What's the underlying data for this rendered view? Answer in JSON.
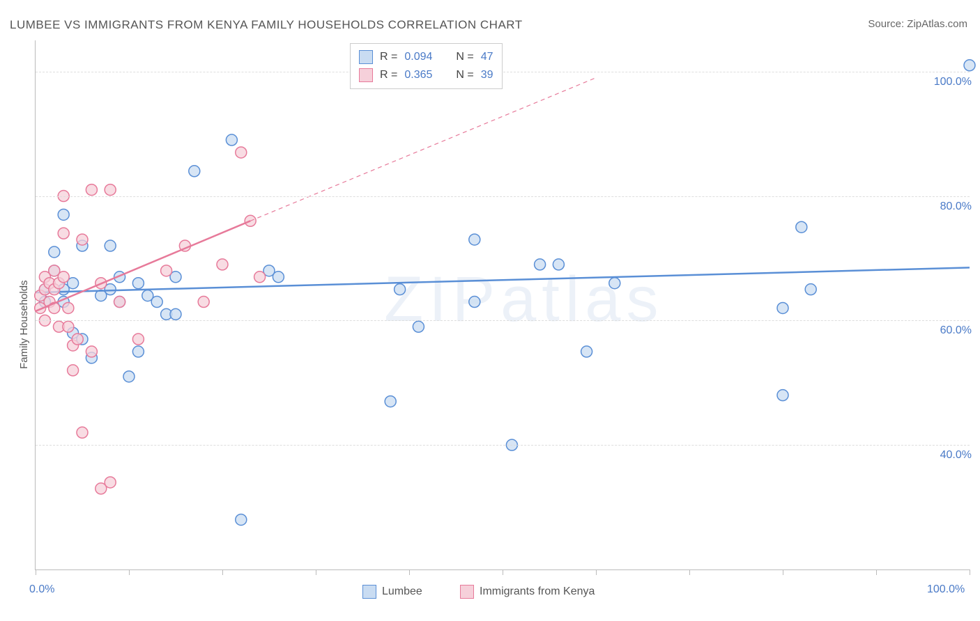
{
  "title": "LUMBEE VS IMMIGRANTS FROM KENYA FAMILY HOUSEHOLDS CORRELATION CHART",
  "source_label": "Source: ",
  "source_name": "ZipAtlas.com",
  "watermark": "ZIPatlas",
  "y_axis_label": "Family Households",
  "chart": {
    "type": "scatter",
    "background_color": "#ffffff",
    "grid_color": "#dddddd",
    "axis_color": "#bbbbbb",
    "tick_label_color": "#4a7ac7",
    "xlim": [
      0,
      100
    ],
    "ylim": [
      20,
      105
    ],
    "y_gridlines": [
      40,
      60,
      80,
      100
    ],
    "y_tick_labels": [
      "40.0%",
      "60.0%",
      "80.0%",
      "100.0%"
    ],
    "x_tick_positions": [
      0,
      10,
      20,
      30,
      40,
      50,
      60,
      70,
      80,
      90,
      100
    ],
    "x_tick_labels_shown": {
      "0": "0.0%",
      "100": "100.0%"
    },
    "marker_radius": 8,
    "marker_stroke_width": 1.5,
    "trend_line_width": 2.5,
    "series": [
      {
        "name": "Lumbee",
        "fill_color": "#c9dcf2",
        "stroke_color": "#5a8fd6",
        "fill_opacity": 0.75,
        "r_value": "0.094",
        "n_value": "47",
        "trend": {
          "x0": 0,
          "y0": 64.5,
          "x1": 100,
          "y1": 68.5,
          "extrapolated": false
        },
        "points": [
          [
            1,
            65
          ],
          [
            1,
            63
          ],
          [
            2,
            68
          ],
          [
            2,
            71
          ],
          [
            3,
            77
          ],
          [
            3,
            63
          ],
          [
            3,
            65
          ],
          [
            4,
            66
          ],
          [
            4,
            58
          ],
          [
            5,
            57
          ],
          [
            5,
            72
          ],
          [
            6,
            54
          ],
          [
            7,
            64
          ],
          [
            8,
            72
          ],
          [
            8,
            65
          ],
          [
            9,
            63
          ],
          [
            9,
            67
          ],
          [
            10,
            51
          ],
          [
            11,
            66
          ],
          [
            11,
            55
          ],
          [
            12,
            64
          ],
          [
            13,
            63
          ],
          [
            14,
            61
          ],
          [
            15,
            67
          ],
          [
            15,
            61
          ],
          [
            17,
            84
          ],
          [
            21,
            89
          ],
          [
            22,
            28
          ],
          [
            25,
            68
          ],
          [
            26,
            67
          ],
          [
            38,
            47
          ],
          [
            39,
            65
          ],
          [
            41,
            59
          ],
          [
            47,
            63
          ],
          [
            47,
            73
          ],
          [
            51,
            40
          ],
          [
            54,
            69
          ],
          [
            56,
            69
          ],
          [
            59,
            55
          ],
          [
            62,
            66
          ],
          [
            80,
            62
          ],
          [
            80,
            48
          ],
          [
            82,
            75
          ],
          [
            83,
            65
          ],
          [
            100,
            101
          ]
        ]
      },
      {
        "name": "Immigrants from Kenya",
        "fill_color": "#f6d0da",
        "stroke_color": "#e77a9a",
        "fill_opacity": 0.75,
        "r_value": "0.365",
        "n_value": "39",
        "trend": {
          "x0": 0,
          "y0": 61.5,
          "x1": 23,
          "y1": 76,
          "extrapolated": true,
          "ex_x1": 60,
          "ex_y1": 99
        },
        "points": [
          [
            0.5,
            64
          ],
          [
            0.5,
            62
          ],
          [
            1,
            65
          ],
          [
            1,
            67
          ],
          [
            1,
            60
          ],
          [
            1.5,
            66
          ],
          [
            1.5,
            63
          ],
          [
            2,
            65
          ],
          [
            2,
            68
          ],
          [
            2,
            62
          ],
          [
            2.5,
            66
          ],
          [
            2.5,
            59
          ],
          [
            3,
            80
          ],
          [
            3,
            67
          ],
          [
            3,
            74
          ],
          [
            3.5,
            62
          ],
          [
            3.5,
            59
          ],
          [
            4,
            56
          ],
          [
            4,
            52
          ],
          [
            4.5,
            57
          ],
          [
            5,
            42
          ],
          [
            5,
            73
          ],
          [
            6,
            81
          ],
          [
            6,
            55
          ],
          [
            7,
            66
          ],
          [
            7,
            33
          ],
          [
            8,
            81
          ],
          [
            8,
            34
          ],
          [
            9,
            63
          ],
          [
            11,
            57
          ],
          [
            14,
            68
          ],
          [
            16,
            72
          ],
          [
            18,
            63
          ],
          [
            20,
            69
          ],
          [
            22,
            87
          ],
          [
            23,
            76
          ],
          [
            24,
            67
          ]
        ]
      }
    ]
  },
  "legend_top": {
    "r_label": "R = ",
    "n_label": "N = "
  },
  "legend_bottom": [
    {
      "label": "Lumbee",
      "fill": "#c9dcf2",
      "stroke": "#5a8fd6"
    },
    {
      "label": "Immigrants from Kenya",
      "fill": "#f6d0da",
      "stroke": "#e77a9a"
    }
  ]
}
